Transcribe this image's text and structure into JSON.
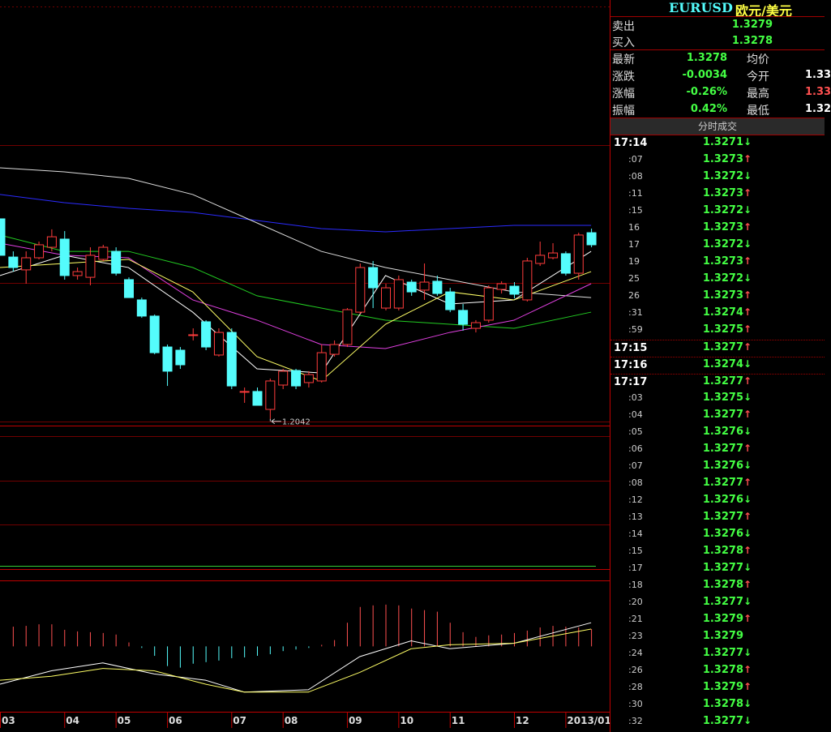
{
  "quote": {
    "symbol": "EURUSD",
    "name": "欧元/美元",
    "sell_label": "卖出",
    "sell": "1.3279",
    "buy_label": "买入",
    "buy": "1.3278",
    "stats": [
      [
        "最新",
        "1.3278",
        "均价"
      ],
      [
        "涨跌",
        "-0.0034",
        "今开",
        "1.33"
      ],
      [
        "涨幅",
        "-0.26%",
        "最高",
        "1.33"
      ],
      [
        "振幅",
        "0.42%",
        "最低",
        "1.32"
      ]
    ]
  },
  "trades_header": "分时成交",
  "trades": [
    {
      "time": "17:14",
      "price": "1.3271",
      "dir": "down"
    },
    {
      "time": ":07",
      "price": "1.3273",
      "dir": "up"
    },
    {
      "time": ":08",
      "price": "1.3272",
      "dir": "down"
    },
    {
      "time": ":11",
      "price": "1.3273",
      "dir": "up"
    },
    {
      "time": ":15",
      "price": "1.3272",
      "dir": "down"
    },
    {
      "time": "16",
      "price": "1.3273",
      "dir": "up"
    },
    {
      "time": "17",
      "price": "1.3272",
      "dir": "down"
    },
    {
      "time": "19",
      "price": "1.3273",
      "dir": "up"
    },
    {
      "time": "25",
      "price": "1.3272",
      "dir": "down"
    },
    {
      "time": "26",
      "price": "1.3273",
      "dir": "up"
    },
    {
      "time": ":31",
      "price": "1.3274",
      "dir": "up"
    },
    {
      "time": ":59",
      "price": "1.3275",
      "dir": "up"
    },
    {
      "time": "17:15",
      "price": "1.3277",
      "dir": "up"
    },
    {
      "time": "17:16",
      "price": "1.3274",
      "dir": "down"
    },
    {
      "time": "17:17",
      "price": "1.3277",
      "dir": "up"
    },
    {
      "time": ":03",
      "price": "1.3275",
      "dir": "down"
    },
    {
      "time": ":04",
      "price": "1.3277",
      "dir": "up"
    },
    {
      "time": ":05",
      "price": "1.3276",
      "dir": "down"
    },
    {
      "time": ":06",
      "price": "1.3277",
      "dir": "up"
    },
    {
      "time": ":07",
      "price": "1.3276",
      "dir": "down"
    },
    {
      "time": ":08",
      "price": "1.3277",
      "dir": "up"
    },
    {
      "time": ":12",
      "price": "1.3276",
      "dir": "down"
    },
    {
      "time": ":13",
      "price": "1.3277",
      "dir": "up"
    },
    {
      "time": ":14",
      "price": "1.3276",
      "dir": "down"
    },
    {
      "time": ":15",
      "price": "1.3278",
      "dir": "up"
    },
    {
      "time": ":17",
      "price": "1.3277",
      "dir": "down"
    },
    {
      "time": ":18",
      "price": "1.3278",
      "dir": "up"
    },
    {
      "time": ":20",
      "price": "1.3277",
      "dir": "down"
    },
    {
      "time": ":21",
      "price": "1.3279",
      "dir": "up"
    },
    {
      "time": ":23",
      "price": "1.3279",
      "dir": null
    },
    {
      "time": ":24",
      "price": "1.3277",
      "dir": "down"
    },
    {
      "time": ":26",
      "price": "1.3278",
      "dir": "up"
    },
    {
      "time": ":28",
      "price": "1.3279",
      "dir": "up"
    },
    {
      "time": ":30",
      "price": "1.3278",
      "dir": "down"
    },
    {
      "time": ":32",
      "price": "1.3277",
      "dir": "down"
    }
  ],
  "chart_data": [
    {
      "type": "candlestick",
      "up_color": "#ff3c3c",
      "down_color": "#54fcfc",
      "ylim": [
        1.1996,
        1.4915
      ],
      "categories": [
        "03",
        null,
        null,
        null,
        null,
        "04",
        null,
        null,
        null,
        "05",
        null,
        null,
        null,
        "06",
        null,
        null,
        null,
        null,
        "07",
        null,
        null,
        null,
        "08",
        null,
        null,
        null,
        null,
        "09",
        null,
        null,
        null,
        "10",
        null,
        null,
        null,
        "11",
        null,
        null,
        null,
        null,
        "12",
        null,
        null,
        null,
        "2013/01",
        null,
        null
      ],
      "candles": [
        [
          1.3414,
          1.3414,
          1.3164,
          1.3164
        ],
        [
          1.3152,
          1.3191,
          1.3052,
          1.308
        ],
        [
          1.3064,
          1.3191,
          1.2969,
          1.3147
        ],
        [
          1.3147,
          1.3258,
          1.3136,
          1.3236
        ],
        [
          1.3219,
          1.3342,
          1.3191,
          1.3291
        ],
        [
          1.3275,
          1.333,
          1.2997,
          1.3025
        ],
        [
          1.3025,
          1.308,
          1.2997,
          1.3052
        ],
        [
          1.3013,
          1.3219,
          1.2958,
          1.3164
        ],
        [
          1.3136,
          1.3236,
          1.3125,
          1.3219
        ],
        [
          1.3191,
          1.3219,
          1.3025,
          1.3041
        ],
        [
          1.2997,
          1.3013,
          1.2874,
          1.2874
        ],
        [
          1.2858,
          1.2874,
          1.2735,
          1.2747
        ],
        [
          1.2747,
          1.2758,
          1.2485,
          1.2496
        ],
        [
          1.2535,
          1.2552,
          1.2268,
          1.2369
        ],
        [
          1.2513,
          1.2535,
          1.2385,
          1.2413
        ],
        [
          1.2619,
          1.2663,
          1.258,
          1.2619
        ],
        [
          1.2708,
          1.2719,
          1.2513,
          1.2535
        ],
        [
          1.248,
          1.2663,
          1.2469,
          1.2635
        ],
        [
          1.2635,
          1.2663,
          1.2246,
          1.2268
        ],
        [
          1.223,
          1.2257,
          1.2152,
          1.223
        ],
        [
          1.223,
          1.2257,
          1.2135,
          1.2135
        ],
        [
          1.2107,
          1.2318,
          1.2042,
          1.2302
        ],
        [
          1.2274,
          1.2385,
          1.2246,
          1.2369
        ],
        [
          1.2374,
          1.2385,
          1.2246,
          1.2268
        ],
        [
          1.2291,
          1.2369,
          1.2257,
          1.2346
        ],
        [
          1.2302,
          1.2552,
          1.2291,
          1.2496
        ],
        [
          1.2485,
          1.258,
          1.2469,
          1.2552
        ],
        [
          1.2552,
          1.2802,
          1.2535,
          1.2791
        ],
        [
          1.2774,
          1.3108,
          1.2763,
          1.308
        ],
        [
          1.308,
          1.3125,
          1.2802,
          1.2941
        ],
        [
          1.2802,
          1.2969,
          1.2786,
          1.2941
        ],
        [
          1.2802,
          1.3025,
          1.2786,
          1.2997
        ],
        [
          1.298,
          1.2997,
          1.2886,
          1.2913
        ],
        [
          1.2925,
          1.3108,
          1.2858,
          1.298
        ],
        [
          1.2986,
          1.3025,
          1.2886,
          1.2902
        ],
        [
          1.2913,
          1.2941,
          1.2774,
          1.2791
        ],
        [
          1.2786,
          1.283,
          1.2647,
          1.2691
        ],
        [
          1.2663,
          1.2719,
          1.2635,
          1.2702
        ],
        [
          1.2719,
          1.2958,
          1.2702,
          1.2941
        ],
        [
          1.293,
          1.2986,
          1.2902,
          1.2969
        ],
        [
          1.2952,
          1.298,
          1.2869,
          1.2897
        ],
        [
          1.2858,
          1.3147,
          1.2847,
          1.3125
        ],
        [
          1.3108,
          1.3258,
          1.3091,
          1.3164
        ],
        [
          1.3147,
          1.3247,
          1.3136,
          1.318
        ],
        [
          1.3175,
          1.3191,
          1.3025,
          1.3041
        ],
        [
          1.3041,
          1.3319,
          1.2997,
          1.3303
        ],
        [
          1.3319,
          1.3347,
          1.3219,
          1.3236
        ]
      ],
      "low_label": "1.2042",
      "ma": [
        {
          "color": "#2b2bff",
          "x": [
            0,
            5,
            10,
            15,
            20,
            25,
            30,
            35,
            40,
            46
          ],
          "values": [
            1.3581,
            1.3525,
            1.3486,
            1.3458,
            1.3403,
            1.3347,
            1.3325,
            1.3347,
            1.3369,
            1.3369
          ]
        },
        {
          "color": "#dddddd",
          "x": [
            0,
            5,
            10,
            15,
            20,
            25,
            30,
            35,
            40,
            46
          ],
          "values": [
            1.3764,
            1.3736,
            1.3692,
            1.3581,
            1.3386,
            1.3191,
            1.308,
            1.2997,
            1.2913,
            1.2874
          ]
        },
        {
          "color": "#22cc22",
          "x": [
            0,
            5,
            10,
            15,
            20,
            25,
            30,
            35,
            40,
            46
          ],
          "values": [
            1.3303,
            1.3191,
            1.3191,
            1.308,
            1.2886,
            1.2802,
            1.2719,
            1.2691,
            1.2663,
            1.2774
          ]
        },
        {
          "color": "#e040e0",
          "x": [
            0,
            5,
            10,
            15,
            20,
            25,
            30,
            35,
            40,
            46
          ],
          "values": [
            1.3247,
            1.3164,
            1.3147,
            1.2858,
            1.2719,
            1.2552,
            1.2524,
            1.2635,
            1.2719,
            1.2969
          ]
        },
        {
          "color": "#ffffff",
          "x": [
            0,
            5,
            10,
            15,
            20,
            25,
            30,
            35,
            40,
            46
          ],
          "values": [
            1.3025,
            1.3164,
            1.308,
            1.2774,
            1.2385,
            1.2357,
            1.3025,
            1.283,
            1.2858,
            1.3191
          ]
        },
        {
          "color": "#ffff66",
          "x": [
            0,
            5,
            10,
            15,
            20,
            25,
            30,
            35,
            40,
            46
          ],
          "values": [
            1.308,
            1.3108,
            1.3136,
            1.2913,
            1.2469,
            1.2302,
            1.2691,
            1.2913,
            1.2858,
            1.3052
          ]
        }
      ]
    },
    {
      "type": "macd",
      "ylim": [
        -85,
        95
      ],
      "pos_color": "#ff5050",
      "neg_color": "#54fcfc",
      "histogram": [
        null,
        25,
        26,
        28,
        28,
        21,
        19,
        18,
        17,
        15,
        5,
        -2,
        -12,
        -25,
        -27,
        -22,
        -20,
        -18,
        -15,
        -14,
        -12,
        -10,
        -6,
        -4,
        -2,
        2,
        8,
        30,
        50,
        52,
        53,
        52,
        48,
        46,
        44,
        30,
        18,
        12,
        14,
        15,
        17,
        20,
        24,
        26,
        25,
        24,
        22
      ],
      "lines": [
        {
          "color": "#ffffff",
          "x": [
            0,
            4,
            8,
            12,
            16,
            19,
            24,
            28,
            32,
            35,
            40,
            46
          ],
          "values": [
            -48,
            -31,
            -21,
            -35,
            -43,
            -58,
            -55,
            -13,
            7,
            -3,
            4,
            30
          ]
        },
        {
          "color": "#ffff66",
          "x": [
            0,
            4,
            8,
            12,
            16,
            19,
            24,
            28,
            32,
            35,
            40,
            46
          ],
          "values": [
            -43,
            -38,
            -28,
            -31,
            -48,
            -58,
            -58,
            -33,
            -3,
            2,
            4,
            22
          ]
        }
      ]
    }
  ]
}
